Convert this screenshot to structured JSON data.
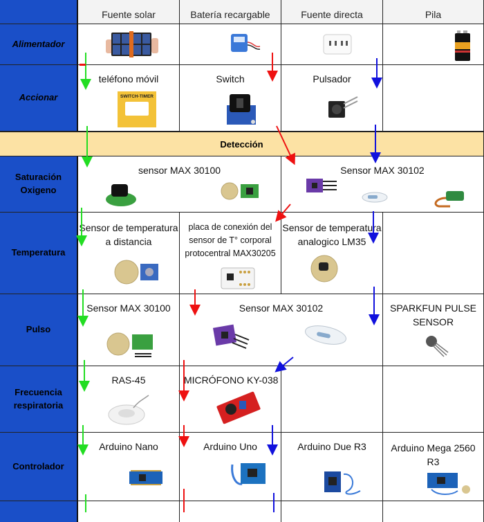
{
  "columns": [
    "Fuente solar",
    "Batería recargable",
    "Fuente directa",
    "Pila"
  ],
  "rows": {
    "alimentador": "Alimentador",
    "accionar": "Accionar",
    "deteccion": "Detección",
    "saturacion": "Saturación\nOxigeno",
    "temperatura": "Temperatura",
    "pulso": "Pulso",
    "frecuencia": "Frecuencia\nrespiratoria",
    "controlador": "Controlador"
  },
  "cells": {
    "accionar_1": "teléfono móvil",
    "accionar_2": "Switch",
    "accionar_3": "Pulsador",
    "switch_timer_label": "SWITCH-TIMER",
    "sat_1": "sensor MAX 30100",
    "sat_2": "Sensor MAX 30102",
    "temp_1": "Sensor de temperatura a distancia",
    "temp_2": "placa de conexión del sensor de T° corporal protocentral MAX30205",
    "temp_3": "Sensor de temperatura analogico LM35",
    "pulso_1": "Sensor MAX 30100",
    "pulso_2": "Sensor MAX 30102",
    "pulso_3": "SPARKFUN PULSE SENSOR",
    "frec_1": "RAS-45",
    "frec_2": "MICRÓFONO KY-038",
    "ctrl_1": "Arduino Nano",
    "ctrl_2": "Arduino Uno",
    "ctrl_3": "Arduino Due R3",
    "ctrl_4": "Arduino Mega 2560 R3"
  },
  "colors": {
    "label_blue": "#1a4fc8",
    "bar_yellow": "#fce2a4",
    "arrow_green": "#22dd22",
    "arrow_red": "#ee1111",
    "arrow_blue": "#1111dd"
  }
}
